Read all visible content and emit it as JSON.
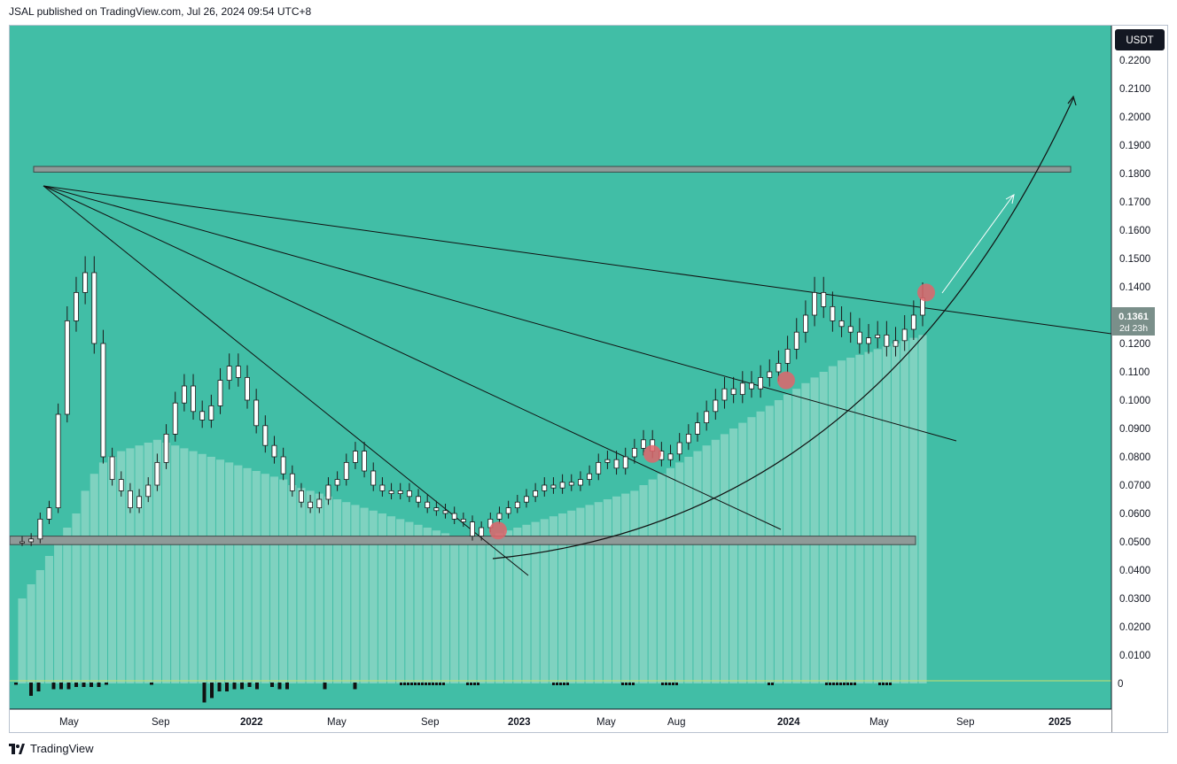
{
  "header": {
    "text": "JSAL published on TradingView.com, Jul 26, 2024 09:54 UTC+8"
  },
  "footer": {
    "brand": "TradingView",
    "logo_icon": "tradingview-logo-icon"
  },
  "colors": {
    "background": "#41bea6",
    "volume": "#7fd2c0",
    "candle_up": "#ffffff",
    "candle_down": "#ffffff",
    "candle_outline": "#1a1a1a",
    "zone": "#8f9a98",
    "marker": "#e0656b",
    "price_tag": "#7a8f8a",
    "zero_line": "#c8e070"
  },
  "chart_data": {
    "type": "candlestick",
    "symbol_currency": "USDT",
    "price_scale": [
      "0.2200",
      "0.2100",
      "0.2000",
      "0.1900",
      "0.1800",
      "0.1700",
      "0.1600",
      "0.1500",
      "0.1400",
      "0.1200",
      "0.1100",
      "0.1000",
      "0.0900",
      "0.0800",
      "0.0700",
      "0.0600",
      "0.0500",
      "0.0400",
      "0.0300",
      "0.0200",
      "0.0100"
    ],
    "price_range": [
      0.0,
      0.23
    ],
    "indicator_zero_label": "0",
    "time_labels": [
      "May",
      "Sep",
      "2022",
      "May",
      "Sep",
      "2023",
      "May",
      "Aug",
      "2024",
      "May",
      "Sep",
      "2025"
    ],
    "last_price": {
      "value": "0.1361",
      "countdown": "2d 23h"
    },
    "candles_close": [
      0.05,
      0.051,
      0.058,
      0.062,
      0.095,
      0.128,
      0.138,
      0.145,
      0.12,
      0.08,
      0.072,
      0.068,
      0.062,
      0.066,
      0.07,
      0.078,
      0.088,
      0.099,
      0.105,
      0.096,
      0.093,
      0.098,
      0.107,
      0.112,
      0.108,
      0.1,
      0.091,
      0.084,
      0.08,
      0.074,
      0.068,
      0.064,
      0.062,
      0.065,
      0.07,
      0.072,
      0.078,
      0.082,
      0.075,
      0.07,
      0.068,
      0.067,
      0.068,
      0.066,
      0.064,
      0.062,
      0.061,
      0.06,
      0.058,
      0.057,
      0.052,
      0.055,
      0.058,
      0.06,
      0.062,
      0.064,
      0.066,
      0.068,
      0.07,
      0.069,
      0.071,
      0.07,
      0.072,
      0.074,
      0.078,
      0.079,
      0.076,
      0.08,
      0.083,
      0.086,
      0.082,
      0.079,
      0.081,
      0.085,
      0.088,
      0.092,
      0.096,
      0.1,
      0.104,
      0.102,
      0.106,
      0.104,
      0.108,
      0.11,
      0.113,
      0.118,
      0.124,
      0.13,
      0.138,
      0.133,
      0.128,
      0.126,
      0.124,
      0.12,
      0.122,
      0.123,
      0.119,
      0.121,
      0.125,
      0.13,
      0.1361
    ],
    "volume": [
      0.03,
      0.035,
      0.04,
      0.045,
      0.05,
      0.055,
      0.06,
      0.068,
      0.074,
      0.078,
      0.08,
      0.082,
      0.083,
      0.084,
      0.085,
      0.086,
      0.085,
      0.084,
      0.083,
      0.082,
      0.081,
      0.08,
      0.079,
      0.078,
      0.077,
      0.076,
      0.075,
      0.074,
      0.073,
      0.072,
      0.07,
      0.069,
      0.068,
      0.067,
      0.066,
      0.065,
      0.064,
      0.063,
      0.062,
      0.061,
      0.06,
      0.059,
      0.058,
      0.057,
      0.056,
      0.055,
      0.054,
      0.053,
      0.052,
      0.051,
      0.05,
      0.051,
      0.052,
      0.053,
      0.054,
      0.055,
      0.056,
      0.057,
      0.058,
      0.059,
      0.06,
      0.061,
      0.062,
      0.063,
      0.064,
      0.065,
      0.066,
      0.067,
      0.068,
      0.07,
      0.072,
      0.074,
      0.076,
      0.078,
      0.08,
      0.082,
      0.084,
      0.086,
      0.088,
      0.09,
      0.092,
      0.094,
      0.096,
      0.098,
      0.1,
      0.102,
      0.104,
      0.106,
      0.108,
      0.11,
      0.112,
      0.114,
      0.115,
      0.116,
      0.117,
      0.118,
      0.119,
      0.12,
      0.121,
      0.122,
      0.123
    ],
    "zones": [
      {
        "name": "resistance",
        "from": 0.1805,
        "to": 0.1825
      },
      {
        "name": "support",
        "from": 0.049,
        "to": 0.052
      }
    ],
    "markers": [
      0.054,
      0.081,
      0.107,
      0.138
    ],
    "grid": false,
    "legend": "none"
  }
}
